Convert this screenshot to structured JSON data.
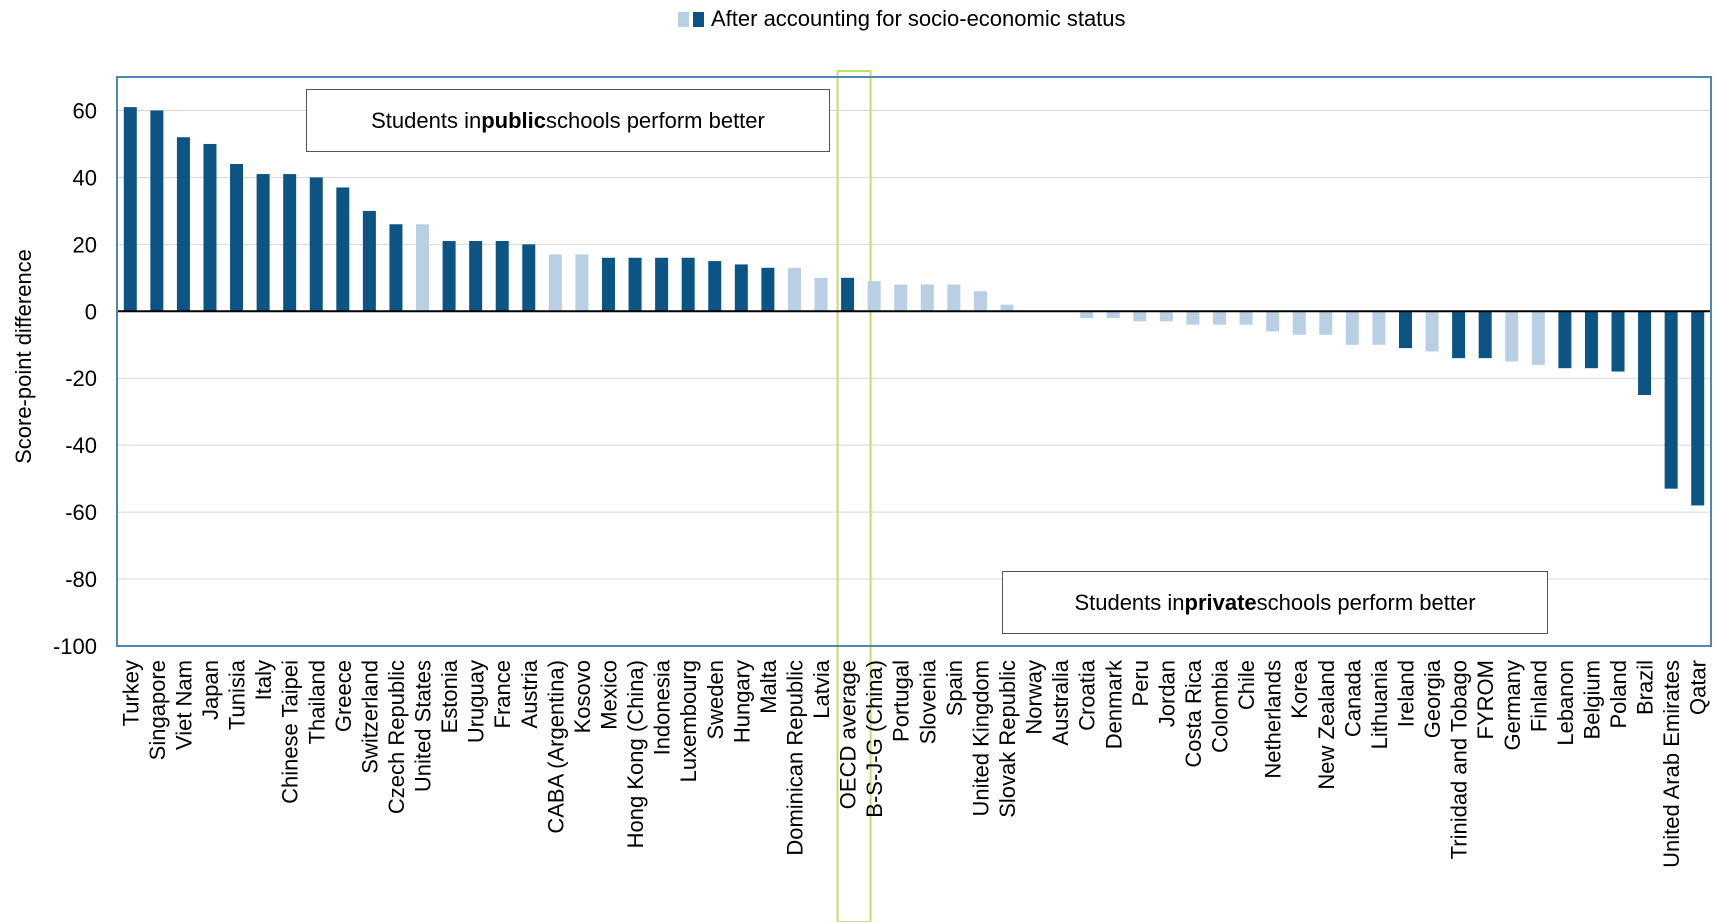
{
  "legend": {
    "label": "After accounting for socio-economic status",
    "swatch_colors": [
      "#b8cfe4",
      "#0b5483"
    ]
  },
  "notes": {
    "public": {
      "pre": "Students in ",
      "bold": "public",
      "post": " schools perform better"
    },
    "private": {
      "pre": "Students in ",
      "bold": "private",
      "post": " schools perform better"
    }
  },
  "colors": {
    "significant": "#0b5483",
    "not_significant": "#b8cfe4",
    "highlight": "#c6dc6b",
    "frame": "#4a8ab0",
    "gridline": "#d8d8d8",
    "zero_line": "#000000"
  },
  "chart_data": {
    "type": "bar",
    "ylabel": "Score-point difference",
    "ylim": [
      -100,
      70
    ],
    "yticks": [
      60,
      40,
      20,
      0,
      -20,
      -40,
      -60,
      -80,
      -100
    ],
    "grid": true,
    "highlighted_category": "OECD average",
    "categories": [
      "Turkey",
      "Singapore",
      "Viet Nam",
      "Japan",
      "Tunisia",
      "Italy",
      "Chinese Taipei",
      "Thailand",
      "Greece",
      "Switzerland",
      "Czech Republic",
      "United States",
      "Estonia",
      "Uruguay",
      "France",
      "Austria",
      "CABA (Argentina)",
      "Kosovo",
      "Mexico",
      "Hong Kong (China)",
      "Indonesia",
      "Luxembourg",
      "Sweden",
      "Hungary",
      "Malta",
      "Dominican Republic",
      "Latvia",
      "OECD average",
      "B-S-J-G (China)",
      "Portugal",
      "Slovenia",
      "Spain",
      "United Kingdom",
      "Slovak Republic",
      "Norway",
      "Australia",
      "Croatia",
      "Denmark",
      "Peru",
      "Jordan",
      "Costa Rica",
      "Colombia",
      "Chile",
      "Netherlands",
      "Korea",
      "New Zealand",
      "Canada",
      "Lithuania",
      "Ireland",
      "Georgia",
      "Trinidad and Tobago",
      "FYROM",
      "Germany",
      "Finland",
      "Lebanon",
      "Belgium",
      "Poland",
      "Brazil",
      "United Arab Emirates",
      "Qatar"
    ],
    "values": [
      61,
      60,
      52,
      50,
      44,
      41,
      41,
      40,
      37,
      30,
      26,
      26,
      21,
      21,
      21,
      20,
      17,
      17,
      16,
      16,
      16,
      16,
      15,
      14,
      13,
      13,
      10,
      10,
      9,
      8,
      8,
      8,
      6,
      2,
      0,
      0,
      -2,
      -2,
      -3,
      -3,
      -4,
      -4,
      -4,
      -6,
      -7,
      -7,
      -10,
      -10,
      -11,
      -12,
      -14,
      -14,
      -15,
      -16,
      -17,
      -17,
      -18,
      -25,
      -53,
      -58
    ],
    "significant": [
      true,
      true,
      true,
      true,
      true,
      true,
      true,
      true,
      true,
      true,
      true,
      false,
      true,
      true,
      true,
      true,
      false,
      false,
      true,
      true,
      true,
      true,
      true,
      true,
      true,
      false,
      false,
      true,
      false,
      false,
      false,
      false,
      false,
      false,
      false,
      false,
      false,
      false,
      false,
      false,
      false,
      false,
      false,
      false,
      false,
      false,
      false,
      false,
      true,
      false,
      true,
      true,
      false,
      false,
      true,
      true,
      true,
      true,
      true,
      true
    ]
  }
}
